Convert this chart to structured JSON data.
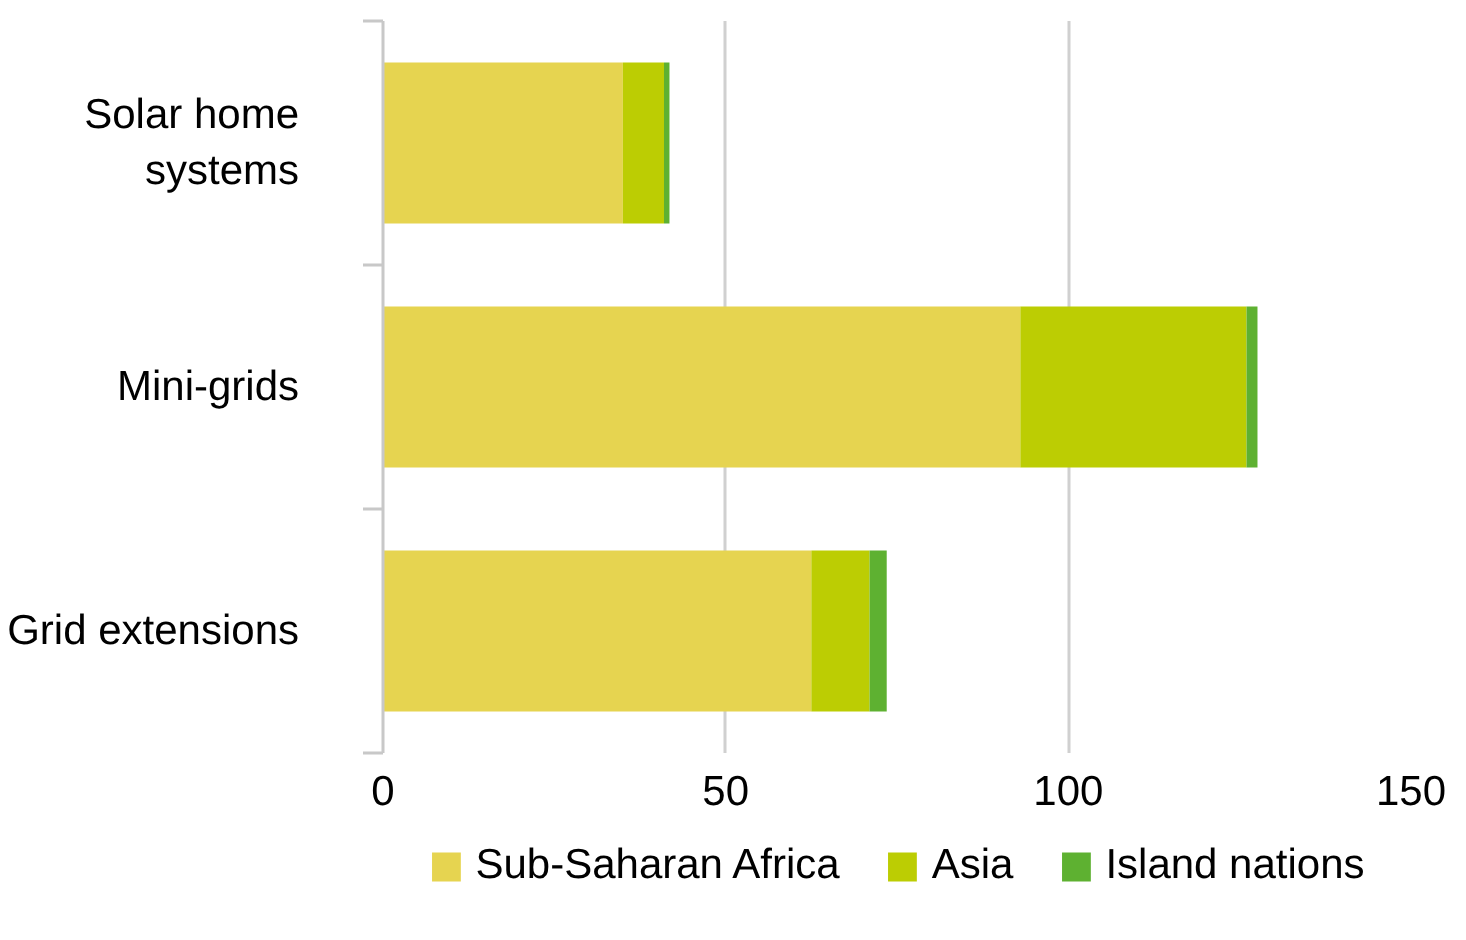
{
  "chart_data": {
    "type": "bar",
    "orientation": "horizontal",
    "stacked": true,
    "categories": [
      "Solar home systems",
      "Mini-grids",
      "Grid extensions"
    ],
    "series": [
      {
        "name": "Sub-Saharan Africa",
        "color": "#e6d450",
        "values": [
          35,
          93,
          62.5
        ]
      },
      {
        "name": "Asia",
        "color": "#bccd03",
        "values": [
          6,
          33,
          8.5
        ]
      },
      {
        "name": "Island nations",
        "color": "#5eb131",
        "values": [
          0.8,
          1.6,
          2.5
        ]
      }
    ],
    "xlim": [
      0,
      150
    ],
    "xticks": [
      0,
      50,
      100,
      150
    ],
    "grid": "x",
    "legend": "bottom"
  }
}
